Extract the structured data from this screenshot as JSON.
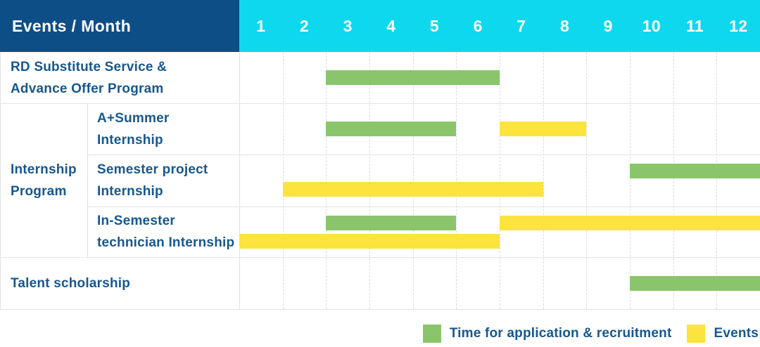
{
  "header": {
    "events_month_label": "Events / Month"
  },
  "colors": {
    "header_blue": "#0e4e87",
    "header_cyan": "#0ed8ee",
    "label_text": "#17578f",
    "bar_green": "#8ac56b",
    "bar_yellow": "#fce33e"
  },
  "chart_data": {
    "type": "bar",
    "subtype": "gantt-schedule-table",
    "title": "Events / Month",
    "x_axis": {
      "label": "Month",
      "ticks": [
        "1",
        "2",
        "3",
        "4",
        "5",
        "6",
        "7",
        "8",
        "9",
        "10",
        "11",
        "12"
      ],
      "range": [
        1,
        12
      ]
    },
    "grid": "dashed-vertical-month-lines",
    "legend_position": "bottom-right",
    "legend": [
      {
        "name": "Time for application & recruitment",
        "color": "#8ac56b"
      },
      {
        "name": "Events",
        "color": "#fce33e"
      }
    ],
    "groups": [
      {
        "id": "internship",
        "label": "Internship Program",
        "label_lines": [
          "Internship",
          "Program"
        ]
      }
    ],
    "rows": [
      {
        "label": "RD Substitute Service & Advance Offer Program",
        "label_lines": [
          "RD Substitute Service &",
          "Advance Offer Program"
        ],
        "group": null,
        "bars": [
          {
            "series": "Time for application & recruitment",
            "start_month": 3,
            "end_month": 6,
            "lane": "center"
          }
        ]
      },
      {
        "label": "A+Summer Internship",
        "label_lines": [
          "A+Summer",
          "Internship"
        ],
        "group": "internship",
        "bars": [
          {
            "series": "Time for application & recruitment",
            "start_month": 3,
            "end_month": 5,
            "lane": "center"
          },
          {
            "series": "Events",
            "start_month": 7,
            "end_month": 8,
            "lane": "center"
          }
        ]
      },
      {
        "label": "Semester project Internship",
        "label_lines": [
          "Semester project",
          "Internship"
        ],
        "group": "internship",
        "bars": [
          {
            "series": "Time for application & recruitment",
            "start_month": 10,
            "end_month": 12,
            "lane": "top"
          },
          {
            "series": "Events",
            "start_month": 2,
            "end_month": 7,
            "lane": "bottom"
          }
        ]
      },
      {
        "label": "In-Semester technician Internship",
        "label_lines": [
          "In-Semester",
          "technician Internship"
        ],
        "group": "internship",
        "bars": [
          {
            "series": "Time for application & recruitment",
            "start_month": 3,
            "end_month": 5,
            "lane": "top"
          },
          {
            "series": "Events",
            "start_month": 7,
            "end_month": 12,
            "lane": "top"
          },
          {
            "series": "Events",
            "start_month": 1,
            "end_month": 6,
            "lane": "bottom"
          }
        ]
      },
      {
        "label": "Talent scholarship",
        "label_lines": [
          "Talent scholarship"
        ],
        "group": null,
        "bars": [
          {
            "series": "Time for application & recruitment",
            "start_month": 10,
            "end_month": 12,
            "lane": "center"
          }
        ]
      }
    ]
  }
}
